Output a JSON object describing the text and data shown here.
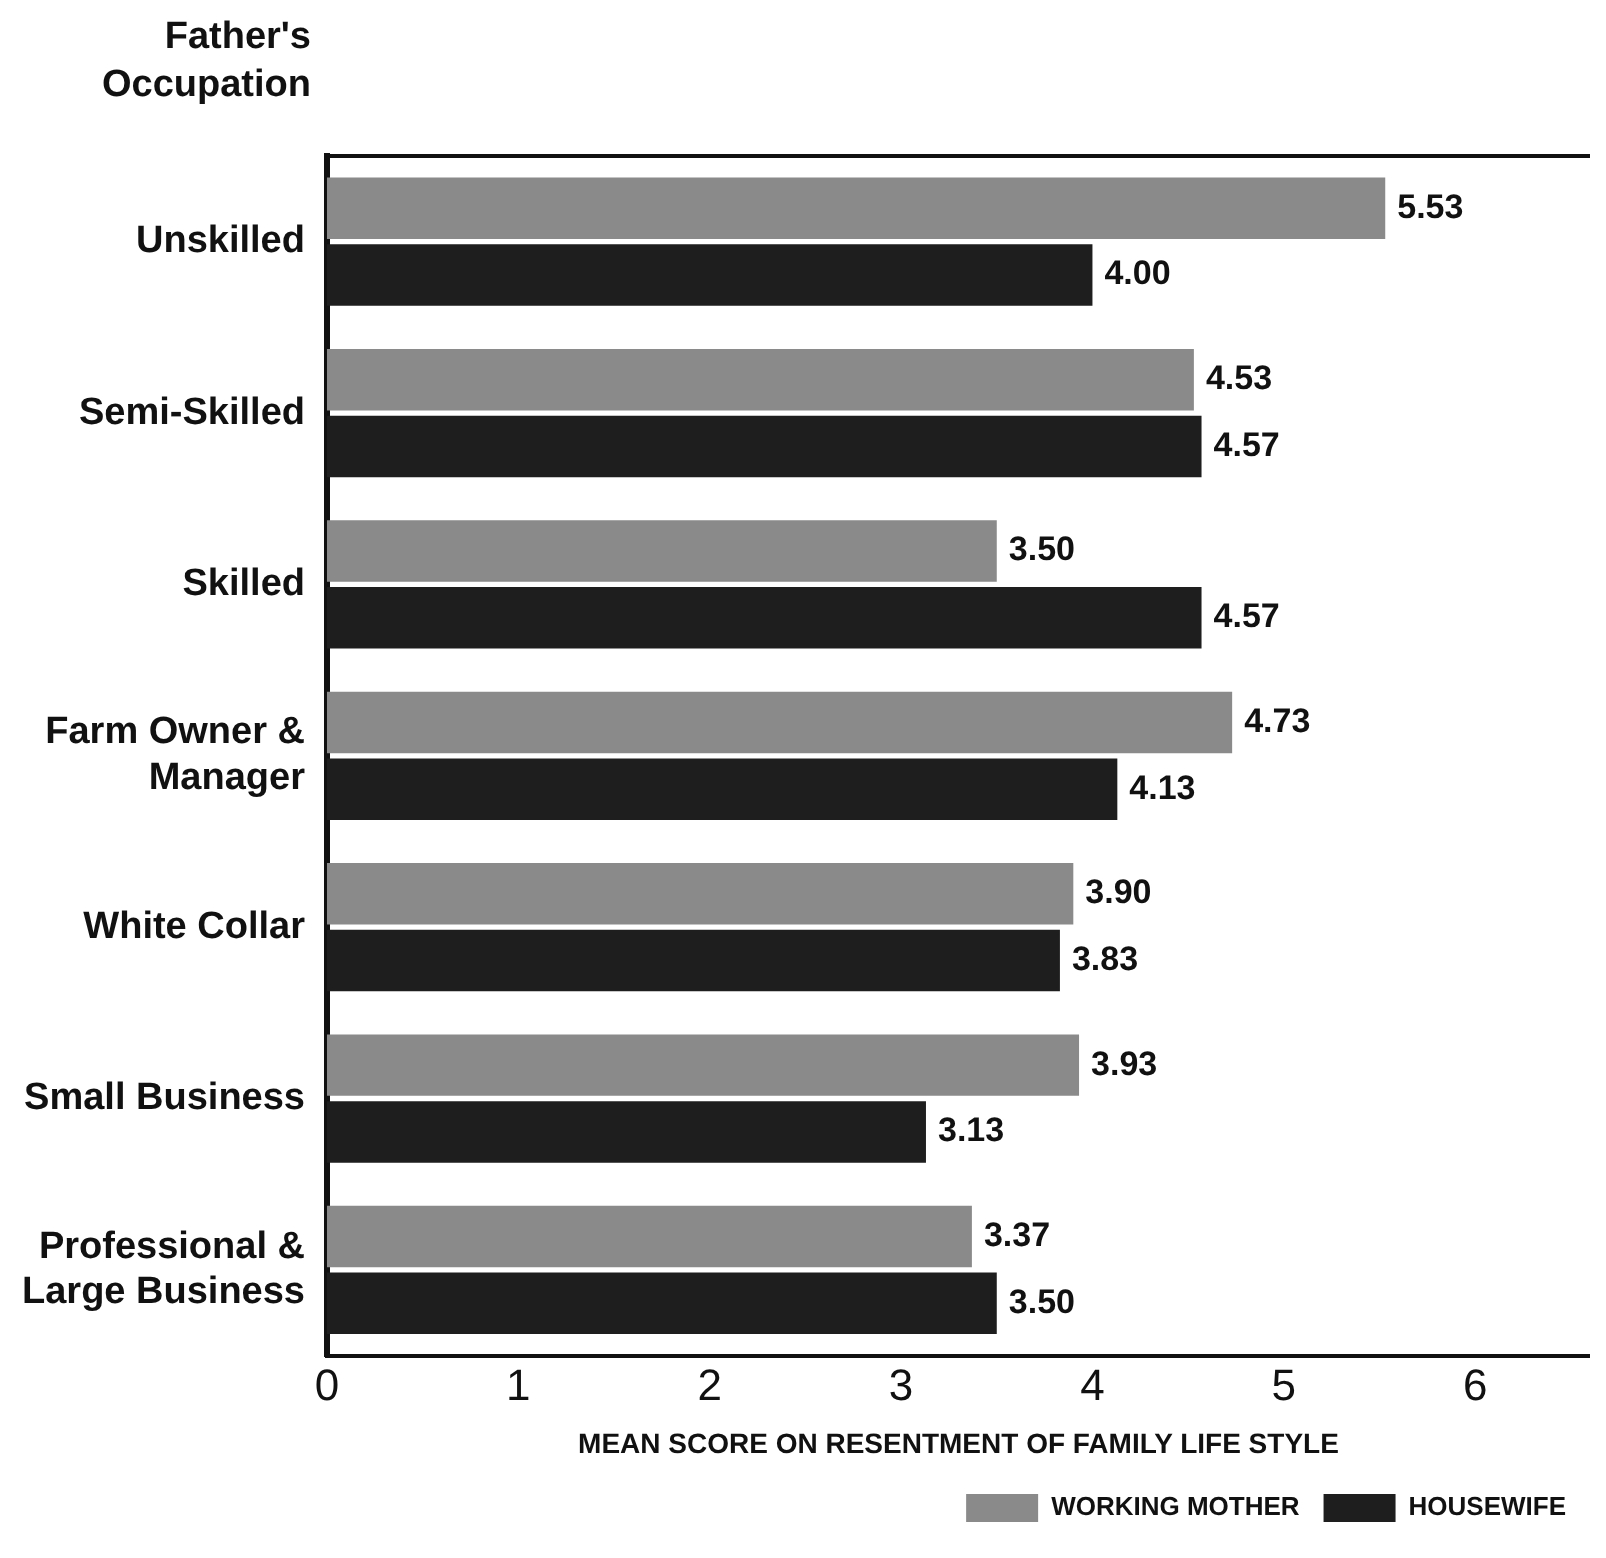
{
  "chart_data": {
    "type": "bar",
    "orientation": "horizontal",
    "ylabel": "Father's\nOccupation",
    "xlabel": "MEAN SCORE ON RESENTMENT OF FAMILY LIFE STYLE",
    "categories": [
      "Unskilled",
      "Semi-Skilled",
      "Skilled",
      "Farm Owner &\nManager",
      "White Collar",
      "Small Business",
      "Professional &\nLarge Business"
    ],
    "series": [
      {
        "name": "WORKING MOTHER",
        "color": "#8a8a8a",
        "values": [
          5.53,
          4.53,
          3.5,
          4.73,
          3.9,
          3.93,
          3.37
        ],
        "value_labels": [
          "5.53",
          "4.53",
          "3.50",
          "4.73",
          "3.90",
          "3.93",
          "3.37"
        ]
      },
      {
        "name": "HOUSEWIFE",
        "color": "#1e1e1e",
        "values": [
          4.0,
          4.57,
          4.57,
          4.13,
          3.83,
          3.13,
          3.5
        ],
        "value_labels": [
          "4.00",
          "4.57",
          "4.57",
          "4.13",
          "3.83",
          "3.13",
          "3.50"
        ]
      }
    ],
    "xlim": [
      0,
      6.6
    ],
    "xticks": [
      0,
      1,
      2,
      3,
      4,
      5,
      6
    ],
    "grid": false,
    "legend": "bottom right"
  }
}
